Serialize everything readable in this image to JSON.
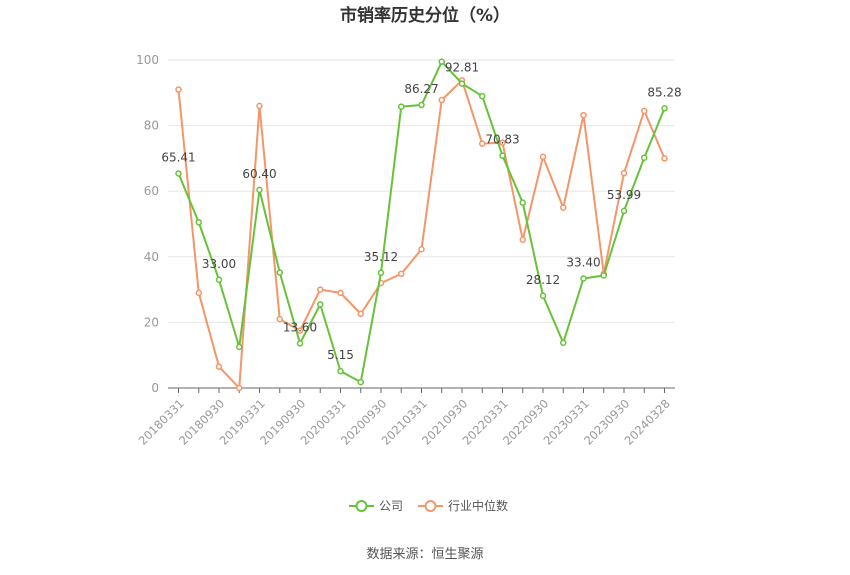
{
  "chart_data": {
    "type": "line",
    "title": "市销率历史分位（%）",
    "source": "数据来源：恒生聚源",
    "xlabel": "",
    "ylabel": "",
    "ylim": [
      0,
      100
    ],
    "yticks": [
      0,
      20,
      40,
      60,
      80,
      100
    ],
    "x": [
      "20180331",
      "20180630",
      "20180930",
      "20181231",
      "20190331",
      "20190630",
      "20190930",
      "20191231",
      "20200331",
      "20200630",
      "20200930",
      "20201231",
      "20210331",
      "20210630",
      "20210930",
      "20211231",
      "20220331",
      "20220630",
      "20220930",
      "20221231",
      "20230331",
      "20230630",
      "20230930",
      "20231231",
      "20240328"
    ],
    "xtick_labels": [
      "20180331",
      "20180930",
      "20190331",
      "20190930",
      "20200331",
      "20200930",
      "20210331",
      "20210930",
      "20220331",
      "20220930",
      "20230331",
      "20230930",
      "20240328"
    ],
    "grid": true,
    "legend_position": "bottom",
    "series": [
      {
        "name": "公司",
        "color": "#67c23a",
        "values": [
          65.41,
          50.5,
          33.0,
          12.5,
          60.4,
          35.2,
          13.6,
          25.5,
          5.15,
          1.8,
          35.12,
          85.8,
          86.27,
          99.5,
          92.81,
          89.0,
          70.83,
          56.5,
          28.12,
          13.8,
          33.4,
          34.3,
          53.99,
          70.2,
          85.28
        ]
      },
      {
        "name": "行业中位数",
        "color": "#f4956a",
        "values": [
          91.0,
          29.0,
          6.5,
          0.0,
          86.0,
          21.0,
          17.5,
          30.0,
          29.0,
          22.6,
          32.0,
          34.8,
          42.3,
          87.8,
          93.8,
          74.5,
          74.8,
          45.2,
          70.5,
          55.0,
          83.2,
          34.8,
          65.5,
          84.5,
          70.0
        ]
      }
    ],
    "data_labels": [
      {
        "series": 0,
        "index": 0,
        "text": "65.41"
      },
      {
        "series": 0,
        "index": 2,
        "text": "33.00"
      },
      {
        "series": 0,
        "index": 4,
        "text": "60.40"
      },
      {
        "series": 0,
        "index": 6,
        "text": "13.60"
      },
      {
        "series": 0,
        "index": 8,
        "text": "5.15"
      },
      {
        "series": 0,
        "index": 10,
        "text": "35.12"
      },
      {
        "series": 0,
        "index": 12,
        "text": "86.27"
      },
      {
        "series": 0,
        "index": 14,
        "text": "92.81"
      },
      {
        "series": 0,
        "index": 16,
        "text": "70.83"
      },
      {
        "series": 0,
        "index": 18,
        "text": "28.12"
      },
      {
        "series": 0,
        "index": 20,
        "text": "33.40"
      },
      {
        "series": 0,
        "index": 22,
        "text": "53.99"
      },
      {
        "series": 0,
        "index": 24,
        "text": "85.28"
      }
    ]
  }
}
